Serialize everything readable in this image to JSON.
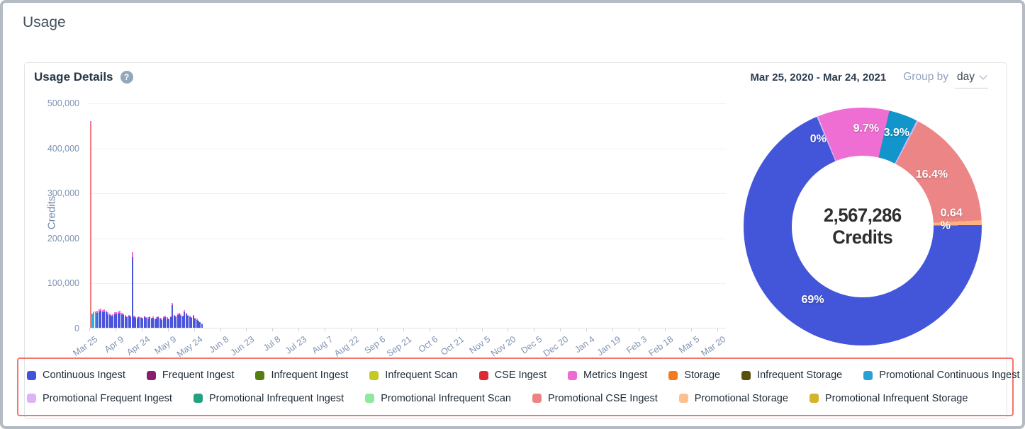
{
  "page": {
    "title": "Usage"
  },
  "panel": {
    "title": "Usage Details",
    "help_icon": "?",
    "date_range": "Mar 25, 2020 - Mar 24, 2021",
    "group_by_label": "Group by",
    "group_by_value": "day"
  },
  "chart_data": [
    {
      "type": "bar",
      "stacked": true,
      "title": "",
      "xlabel": "",
      "ylabel": "Credits",
      "ylim": [
        0,
        500000
      ],
      "grid": true,
      "ytick_labels": [
        "0",
        "100,000",
        "200,000",
        "300,000",
        "400,000",
        "500,000"
      ],
      "xtick_labels": [
        "Mar 25",
        "Apr 9",
        "Apr 24",
        "May 9",
        "May 24",
        "Jun 8",
        "Jun 23",
        "Jul 8",
        "Jul 23",
        "Aug 7",
        "Aug 22",
        "Sep 6",
        "Sep 21",
        "Oct 6",
        "Oct 21",
        "Nov 5",
        "Nov 20",
        "Dec 5",
        "Dec 20",
        "Jan 4",
        "Jan 19",
        "Feb 3",
        "Feb 18",
        "Mar 5",
        "Mar 20"
      ],
      "days_on_axis": 365,
      "days_between_ticks": 15,
      "note": "daily stacked bars Mar 25 - May 28 only; rest of year empty",
      "series_order": [
        "Promotional CSE Ingest",
        "Promotional Continuous Ingest",
        "Continuous Ingest",
        "Metrics Ingest"
      ],
      "series_colors": [
        "#ef7f80",
        "#2bb3e0",
        "#4a55dc",
        "#f06fd8"
      ],
      "bars": [
        [
          455000,
          0,
          0,
          4000
        ],
        [
          0,
          30000,
          0,
          2000
        ],
        [
          0,
          33000,
          0,
          2500
        ],
        [
          0,
          34000,
          0,
          2500
        ],
        [
          0,
          0,
          33000,
          4000
        ],
        [
          0,
          0,
          36000,
          5000
        ],
        [
          0,
          0,
          37000,
          5000
        ],
        [
          0,
          0,
          35000,
          4500
        ],
        [
          0,
          0,
          36000,
          5000
        ],
        [
          0,
          0,
          34000,
          4000
        ],
        [
          0,
          0,
          30000,
          4000
        ],
        [
          0,
          0,
          28000,
          3500
        ],
        [
          0,
          0,
          25000,
          3000
        ],
        [
          0,
          0,
          27000,
          3500
        ],
        [
          0,
          0,
          30000,
          4000
        ],
        [
          0,
          0,
          31000,
          4000
        ],
        [
          0,
          0,
          32000,
          4500
        ],
        [
          0,
          0,
          33000,
          4000
        ],
        [
          0,
          0,
          30000,
          3500
        ],
        [
          0,
          0,
          28000,
          3000
        ],
        [
          0,
          0,
          25000,
          3000
        ],
        [
          0,
          0,
          23000,
          2500
        ],
        [
          0,
          0,
          26000,
          3000
        ],
        [
          0,
          0,
          24000,
          2500
        ],
        [
          0,
          0,
          158000,
          10000
        ],
        [
          0,
          0,
          24000,
          2500
        ],
        [
          0,
          0,
          22000,
          2500
        ],
        [
          0,
          0,
          21000,
          2000
        ],
        [
          0,
          0,
          23000,
          2500
        ],
        [
          0,
          0,
          22000,
          2000
        ],
        [
          0,
          0,
          20000,
          2000
        ],
        [
          0,
          0,
          24000,
          2500
        ],
        [
          0,
          0,
          22000,
          2000
        ],
        [
          0,
          0,
          21000,
          2500
        ],
        [
          0,
          0,
          23000,
          2000
        ],
        [
          0,
          0,
          20000,
          2000
        ],
        [
          0,
          0,
          22000,
          2500
        ],
        [
          0,
          0,
          19000,
          2000
        ],
        [
          0,
          0,
          21000,
          2000
        ],
        [
          0,
          0,
          23000,
          2500
        ],
        [
          0,
          0,
          20000,
          2000
        ],
        [
          0,
          0,
          18000,
          2000
        ],
        [
          0,
          0,
          22000,
          2500
        ],
        [
          0,
          0,
          24000,
          2500
        ],
        [
          0,
          0,
          21000,
          2000
        ],
        [
          0,
          0,
          19000,
          2000
        ],
        [
          0,
          0,
          23000,
          2500
        ],
        [
          0,
          0,
          50000,
          5000
        ],
        [
          0,
          0,
          26000,
          3000
        ],
        [
          0,
          0,
          24000,
          2500
        ],
        [
          0,
          0,
          28000,
          3000
        ],
        [
          0,
          0,
          30000,
          3500
        ],
        [
          0,
          0,
          27000,
          3000
        ],
        [
          0,
          0,
          25000,
          2500
        ],
        [
          0,
          0,
          35000,
          4000
        ],
        [
          0,
          0,
          30000,
          3000
        ],
        [
          0,
          0,
          26000,
          2500
        ],
        [
          0,
          0,
          24000,
          2500
        ],
        [
          0,
          0,
          22000,
          2000
        ],
        [
          0,
          0,
          26000,
          2500
        ],
        [
          0,
          0,
          20000,
          2000
        ],
        [
          0,
          0,
          18000,
          2000
        ],
        [
          0,
          0,
          15000,
          1500
        ],
        [
          0,
          0,
          12000,
          1000
        ],
        [
          0,
          0,
          8000,
          800
        ]
      ]
    },
    {
      "type": "pie",
      "donut": true,
      "center_value": "2,567,286",
      "center_label": "Credits",
      "start_angle_deg": -22.7,
      "slices": [
        {
          "label": "Promotional Frequent Ingest",
          "pct": 0.2,
          "display_pct": "0%",
          "color": "#cfb3f2",
          "label_angle": -27,
          "label_r": 138
        },
        {
          "label": "Metrics Ingest",
          "pct": 9.7,
          "display_pct": "9.7%",
          "color": "#ef6ed3",
          "label_angle": 2,
          "label_r": 138
        },
        {
          "label": "Promotional Continuous Ingest",
          "pct": 3.9,
          "display_pct": "3.9%",
          "color": "#1295ca",
          "label_angle": 20,
          "label_r": 140
        },
        {
          "label": "Promotional Frequent Ingest sliver",
          "pct": 0.26,
          "display_pct": "",
          "color": "#cfb3f2",
          "label_angle": null,
          "label_r": null
        },
        {
          "label": "Promotional CSE Ingest",
          "pct": 16.4,
          "display_pct": "16.4%",
          "color": "#ec8585",
          "label_angle": 53,
          "label_r": 122
        },
        {
          "label": "Promotional Storage",
          "pct": 0.64,
          "display_pct": "0.64 %",
          "color": "#ffb27c",
          "label_angle": 86,
          "label_r": 132
        },
        {
          "label": "Continuous Ingest",
          "pct": 68.9,
          "display_pct": "69%",
          "color": "#4355d8",
          "label_angle": 214,
          "label_r": 126
        }
      ]
    }
  ],
  "legend": {
    "rows": [
      [
        {
          "label": "Continuous Ingest",
          "color": "#4254d5"
        },
        {
          "label": "Frequent Ingest",
          "color": "#8b1d70"
        },
        {
          "label": "Infrequent Ingest",
          "color": "#567d11"
        },
        {
          "label": "Infrequent Scan",
          "color": "#c3ca20"
        },
        {
          "label": "CSE Ingest",
          "color": "#dd2a35"
        },
        {
          "label": "Metrics Ingest",
          "color": "#ec6bd3"
        },
        {
          "label": "Storage",
          "color": "#f47a21"
        },
        {
          "label": "Infrequent Storage",
          "color": "#5a4f0b"
        },
        {
          "label": "Promotional Continuous Ingest",
          "color": "#29a0d6"
        }
      ],
      [
        {
          "label": "Promotional Frequent Ingest",
          "color": "#dcb3f7"
        },
        {
          "label": "Promotional Infrequent Ingest",
          "color": "#22a183"
        },
        {
          "label": "Promotional Infrequent Scan",
          "color": "#90e79e"
        },
        {
          "label": "Promotional CSE Ingest",
          "color": "#ee8181"
        },
        {
          "label": "Promotional Storage",
          "color": "#ffc08e"
        },
        {
          "label": "Promotional Infrequent Storage",
          "color": "#d5b42a"
        }
      ]
    ]
  }
}
